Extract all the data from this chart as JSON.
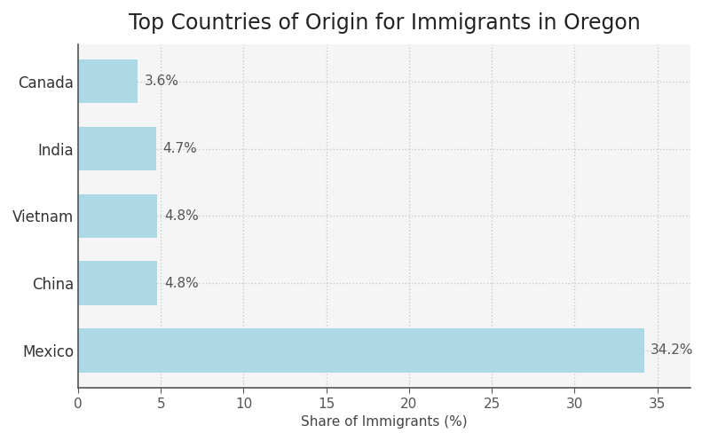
{
  "title": "Top Countries of Origin for Immigrants in Oregon",
  "categories": [
    "Mexico",
    "China",
    "Vietnam",
    "India",
    "Canada"
  ],
  "values": [
    34.2,
    4.8,
    4.8,
    4.7,
    3.6
  ],
  "labels": [
    "34.2%",
    "4.8%",
    "4.8%",
    "4.7%",
    "3.6%"
  ],
  "bar_color": "#add8e6",
  "xlabel": "Share of Immigrants (%)",
  "xlim": [
    0,
    37
  ],
  "xticks": [
    0,
    5,
    10,
    15,
    20,
    25,
    30,
    35
  ],
  "background_color": "#ffffff",
  "plot_bg_color": "#f5f5f5",
  "title_fontsize": 17,
  "label_fontsize": 11,
  "tick_fontsize": 11,
  "grid_color": "#cccccc",
  "grid_linestyle": ":",
  "bar_height": 0.65,
  "spine_color": "#555555"
}
